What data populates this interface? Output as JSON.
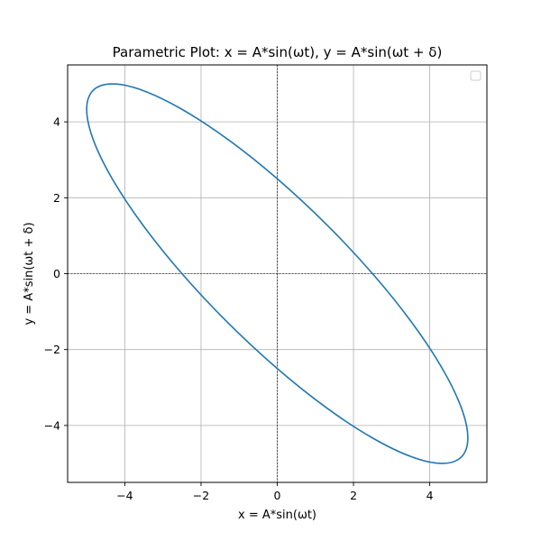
{
  "chart_data": {
    "type": "line",
    "title": "Parametric Plot: x = A*sin(ωt), y = A*sin(ωt + δ)",
    "xlabel": "x = A*sin(ωt)",
    "ylabel": "y = A*sin(ωt + δ)",
    "xlim": [
      -5.5,
      5.5
    ],
    "ylim": [
      -5.5,
      5.5
    ],
    "grid": true,
    "legend": {
      "placement": "top-right",
      "entries": []
    },
    "reference_lines": [
      {
        "axis": "x",
        "value": 0,
        "style": "dashed"
      },
      {
        "axis": "y",
        "value": 0,
        "style": "dashed"
      }
    ],
    "x_ticks": [
      {
        "value": -4,
        "label": "−4"
      },
      {
        "value": -2,
        "label": "−2"
      },
      {
        "value": 0,
        "label": "0"
      },
      {
        "value": 2,
        "label": "2"
      },
      {
        "value": 4,
        "label": "4"
      }
    ],
    "y_ticks": [
      {
        "value": -4,
        "label": "−4"
      },
      {
        "value": -2,
        "label": "−2"
      },
      {
        "value": 0,
        "label": "0"
      },
      {
        "value": 2,
        "label": "2"
      },
      {
        "value": 4,
        "label": "4"
      }
    ],
    "series": [
      {
        "color": "#1f77b4",
        "x": [
          0,
          1.294,
          2.5,
          3.536,
          4.33,
          4.83,
          5,
          4.83,
          4.33,
          3.536,
          2.5,
          1.294,
          0,
          -1.294,
          -2.5,
          -3.536,
          -4.33,
          -4.83,
          -5,
          -4.83,
          -4.33,
          -3.536,
          -2.5,
          -1.294,
          0
        ],
        "y": [
          -2.5,
          -3.536,
          -4.33,
          -4.83,
          -5,
          -4.83,
          -4.33,
          -3.536,
          -2.5,
          -1.294,
          0,
          1.294,
          2.5,
          3.536,
          4.33,
          4.83,
          5,
          4.83,
          4.33,
          3.536,
          2.5,
          1.294,
          0,
          -1.294,
          -2.5
        ]
      }
    ]
  }
}
